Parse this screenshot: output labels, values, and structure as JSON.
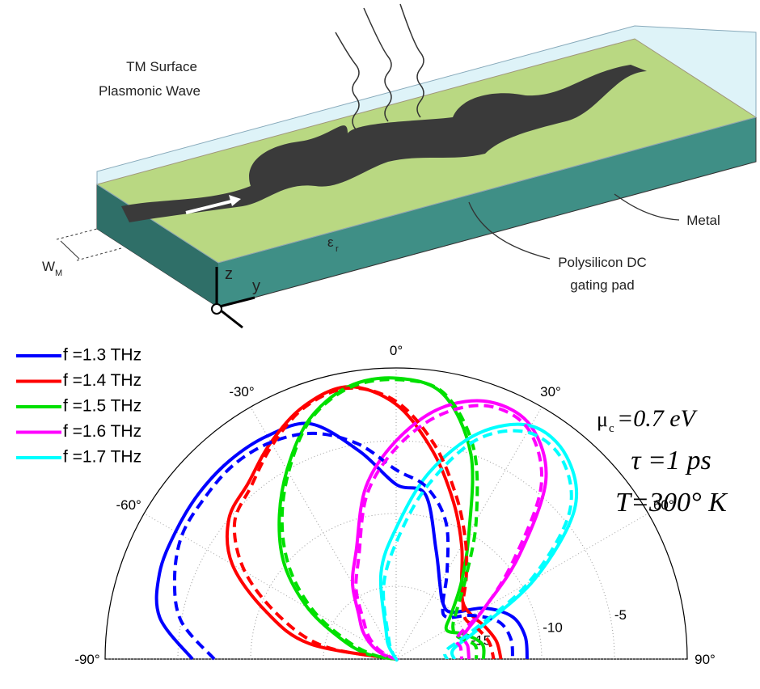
{
  "diagram": {
    "wave_label": [
      "TM Surface",
      "Plasmonic Wave"
    ],
    "metal": "Metal",
    "gate_label": [
      "Polysilicon DC",
      "gating pad"
    ],
    "width_symbol": "W",
    "width_sub": "M",
    "permittivity_symbol": "ε",
    "permittivity_sub": "r",
    "axis_z": "z",
    "axis_y": "y"
  },
  "chart_data": {
    "type": "polar",
    "theta": [
      -90,
      -80,
      -70,
      -60,
      -50,
      -40,
      -30,
      -20,
      -10,
      0,
      10,
      20,
      30,
      40,
      50,
      60,
      70,
      80,
      90
    ],
    "rlim": [
      -20,
      0
    ],
    "rticks": [
      -15,
      -10,
      -5
    ],
    "thetaticks": [
      {
        "value": -90,
        "label": "-90°"
      },
      {
        "value": -60,
        "label": "-60°"
      },
      {
        "value": -30,
        "label": "-30°"
      },
      {
        "value": 0,
        "label": "0°"
      },
      {
        "value": 30,
        "label": "30°"
      },
      {
        "value": 60,
        "label": "60°"
      },
      {
        "value": 90,
        "label": "90°"
      }
    ],
    "grid": true,
    "legend": "upper left",
    "annotations": [
      {
        "main": "μ",
        "sub": "c",
        "rest": "=0.7 eV"
      },
      "τ =1 ps",
      "T=300° K"
    ],
    "series": [
      {
        "name": "f =1.3 THz",
        "color": "#0000ff",
        "dash": false,
        "values": [
          -6,
          -3.5,
          -2.7,
          -2.5,
          -2.3,
          -2.2,
          -2.3,
          -2.8,
          -5.5,
          -8,
          -8.5,
          -12,
          -14,
          -15,
          -15,
          -13,
          -11.5,
          -11,
          -11
        ]
      },
      {
        "name": "f =1.4 THz",
        "color": "#ff0000",
        "dash": false,
        "values": [
          -20,
          -14,
          -10.5,
          -7,
          -5,
          -4.2,
          -2.8,
          -1.5,
          -1,
          -2.5,
          -5.5,
          -8.5,
          -11,
          -13,
          -14,
          -14,
          -13.5,
          -13,
          -12.8
        ]
      },
      {
        "name": "f =1.5 THz",
        "color": "#00e000",
        "dash": false,
        "values": [
          -20,
          -18,
          -16,
          -13,
          -10,
          -7.5,
          -5,
          -2.5,
          -1,
          -0.7,
          -1.5,
          -5,
          -10,
          -13,
          -15,
          -16,
          -15,
          -14,
          -14
        ]
      },
      {
        "name": "f =1.6 THz",
        "color": "#ff00ff",
        "dash": false,
        "values": [
          -20,
          -20,
          -19,
          -18,
          -17,
          -16,
          -14,
          -12,
          -8,
          -5,
          -2.5,
          -1.2,
          -1.5,
          -4,
          -9,
          -13,
          -15,
          -15,
          -15
        ]
      },
      {
        "name": "f =1.7 THz",
        "color": "#00ffff",
        "dash": false,
        "values": [
          -20,
          -20,
          -20,
          -20,
          -20,
          -20,
          -19,
          -18,
          -14,
          -11,
          -7,
          -3.5,
          -1.5,
          -1.8,
          -4,
          -9,
          -14,
          -16,
          -16
        ]
      },
      {
        "color": "#0000ff",
        "dash": true,
        "values": [
          -7.5,
          -5,
          -3.8,
          -3,
          -2.8,
          -2.6,
          -2.8,
          -3.5,
          -5,
          -7,
          -8,
          -10,
          -13,
          -15,
          -15.5,
          -14,
          -12.5,
          -12,
          -12
        ]
      },
      {
        "color": "#ff0000",
        "dash": true,
        "values": [
          -20,
          -15,
          -11.5,
          -8,
          -5.5,
          -4.5,
          -3,
          -1.6,
          -1.1,
          -2.3,
          -5,
          -8,
          -10.5,
          -12.5,
          -14,
          -14.5,
          -14,
          -13.5,
          -13.3
        ]
      },
      {
        "color": "#00e000",
        "dash": true,
        "values": [
          -20,
          -18.5,
          -16.5,
          -13.5,
          -10.5,
          -7.8,
          -5.2,
          -2.6,
          -1.1,
          -0.8,
          -1.4,
          -4.5,
          -9,
          -12.5,
          -14.5,
          -15.5,
          -15.5,
          -14.5,
          -14.5
        ]
      },
      {
        "color": "#ff00ff",
        "dash": true,
        "values": [
          -20,
          -20,
          -19.5,
          -18.5,
          -17.5,
          -16.5,
          -14.5,
          -12.5,
          -8.5,
          -5.5,
          -3,
          -1.5,
          -1.8,
          -4.5,
          -9.5,
          -13,
          -15.5,
          -15.5,
          -15.5
        ]
      },
      {
        "color": "#00ffff",
        "dash": true,
        "values": [
          -20,
          -20,
          -20,
          -20,
          -20,
          -20,
          -19.5,
          -18.5,
          -15,
          -12,
          -8,
          -4,
          -2,
          -2.2,
          -4.5,
          -9.5,
          -14.5,
          -16.5,
          -16.5
        ]
      }
    ]
  }
}
